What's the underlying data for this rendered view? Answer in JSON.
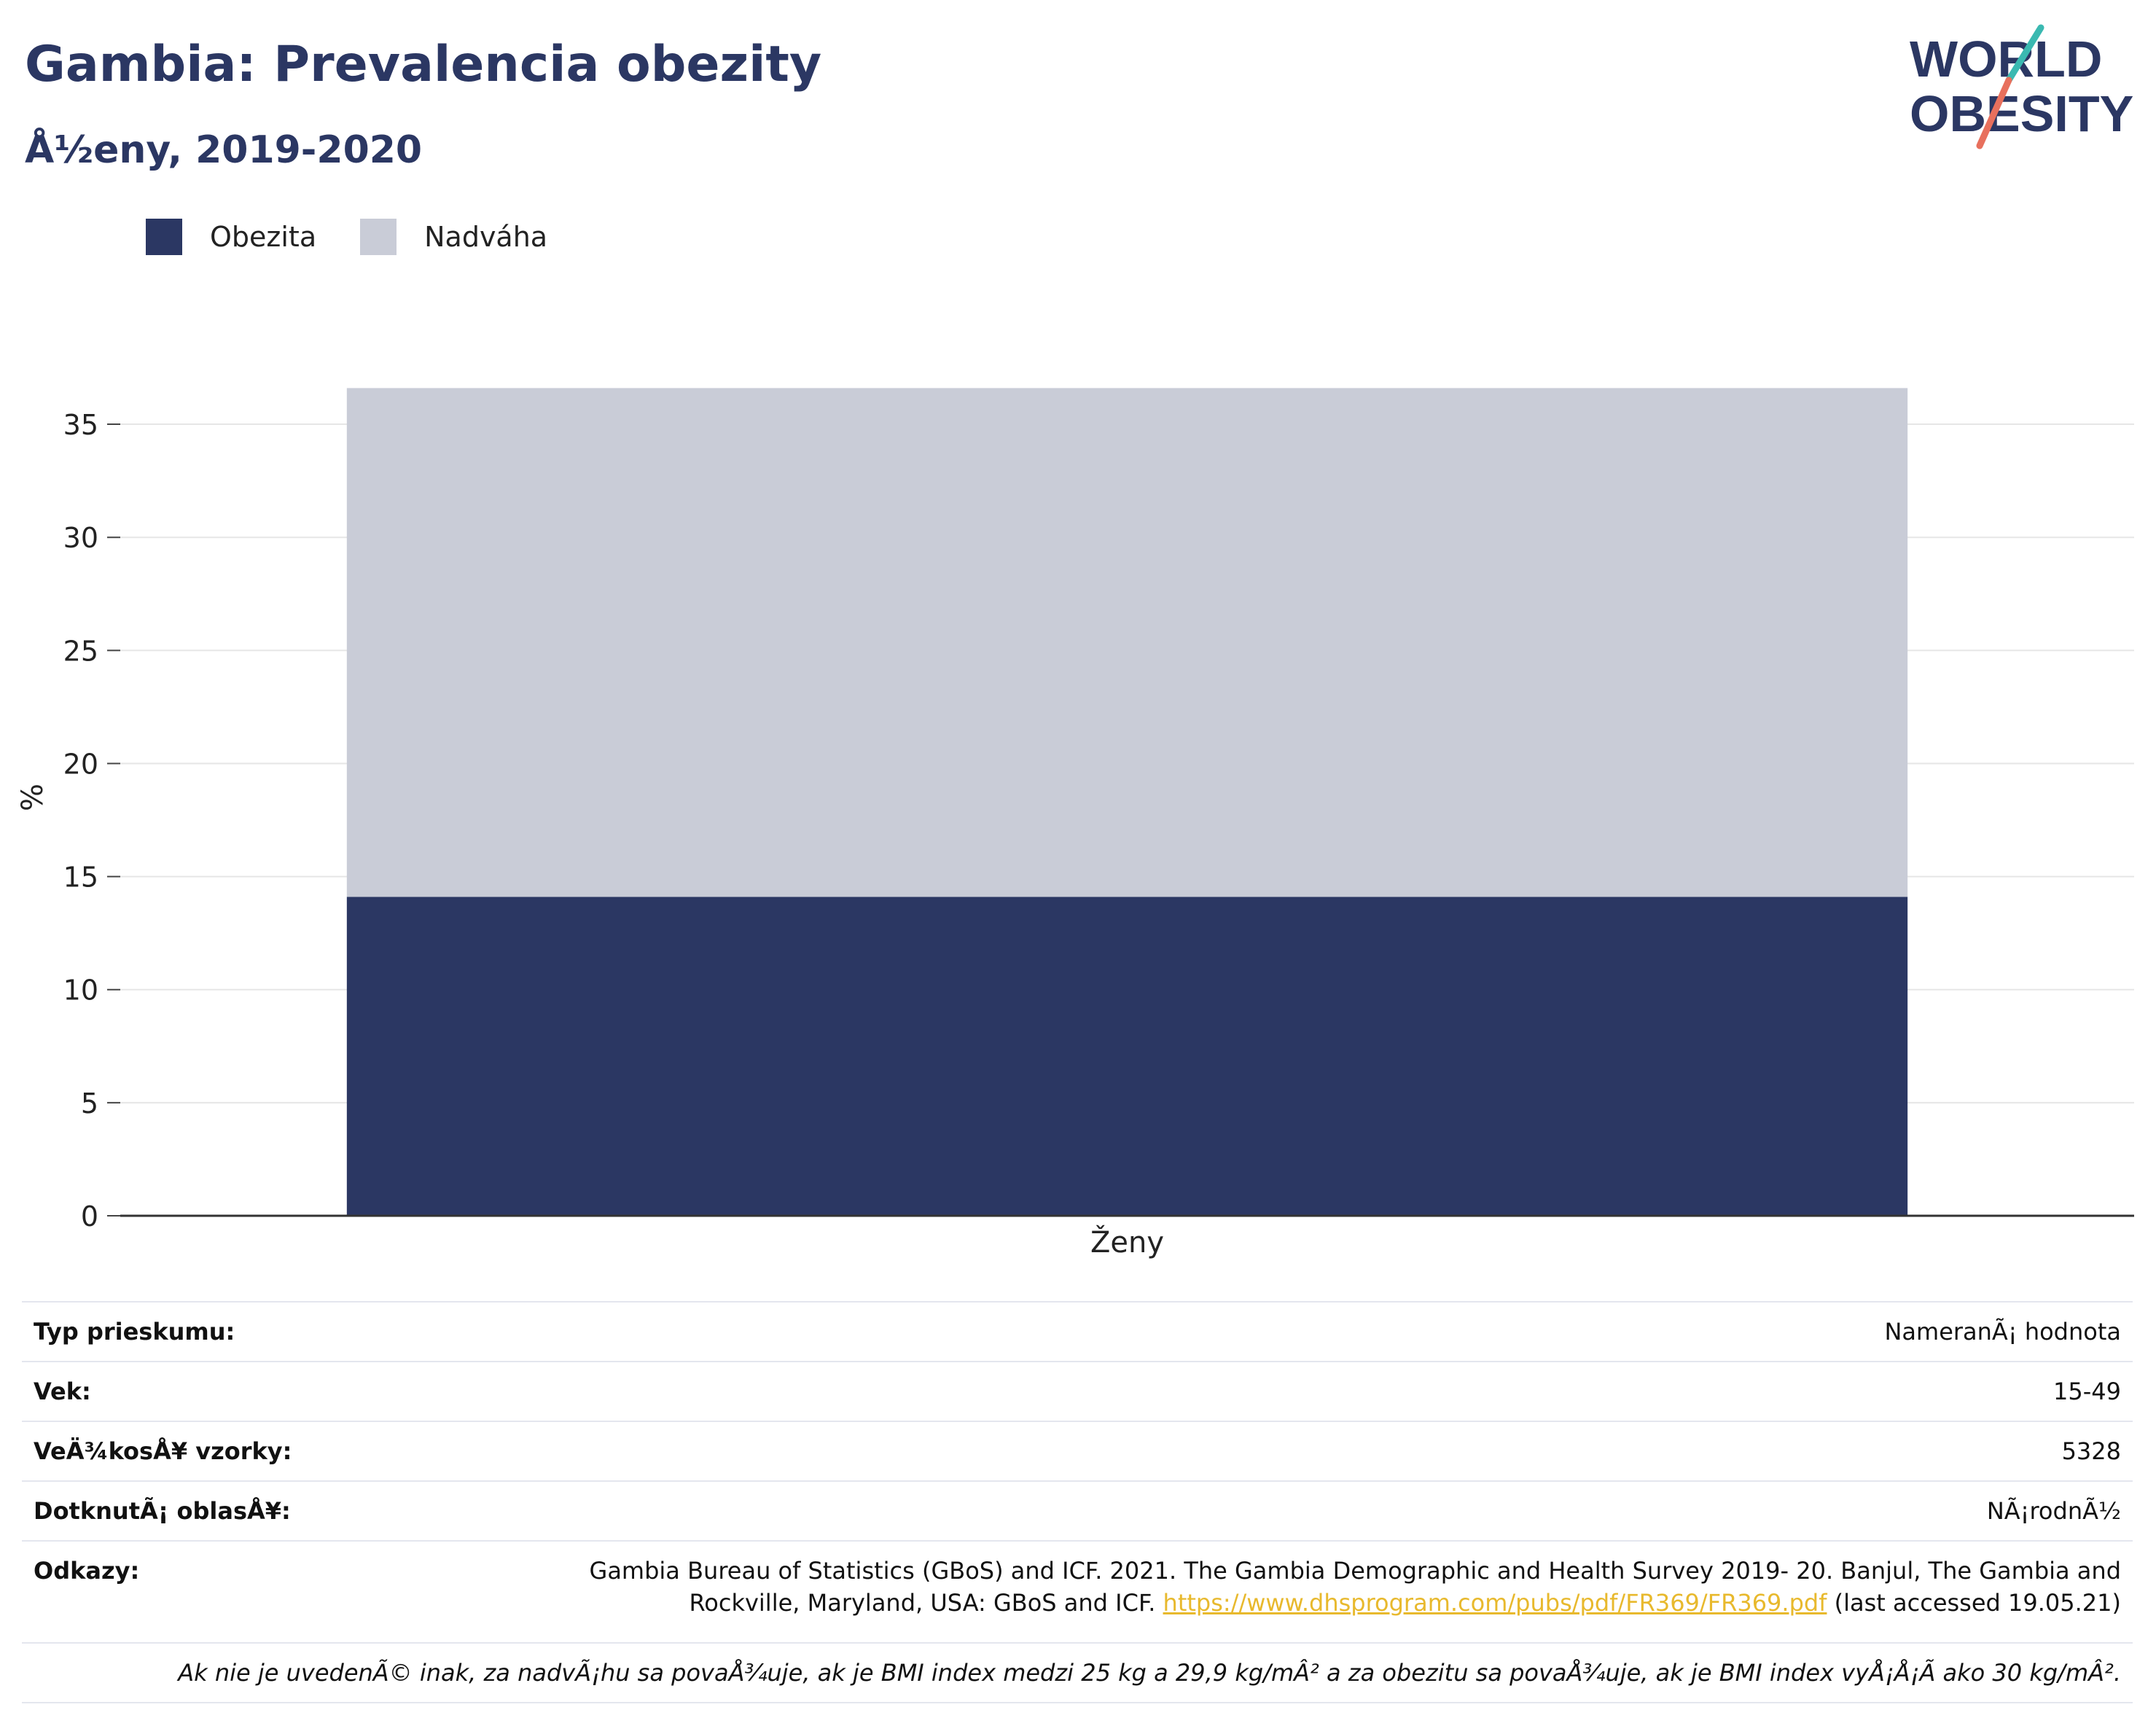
{
  "header": {
    "title": "Gambia: Prevalencia obezity",
    "subtitle": "Å½eny, 2019-2020"
  },
  "logo": {
    "line1": "WORLD",
    "line2": "OBESITY",
    "accent_teal": "#3ab9b1",
    "accent_coral": "#e8705d",
    "brand": "#2b3763"
  },
  "legend": [
    {
      "label": "Obezita",
      "color": "#2b3763"
    },
    {
      "label": "Nadváha",
      "color": "#c9ccd7"
    }
  ],
  "chart_data": {
    "type": "bar",
    "stacked": true,
    "categories": [
      "Ženy"
    ],
    "series": [
      {
        "name": "Obezita",
        "values": [
          14.1
        ],
        "color": "#2b3763"
      },
      {
        "name": "Nadváha",
        "values": [
          22.5
        ],
        "color": "#c9ccd7"
      }
    ],
    "ylabel": "%",
    "xlabel": "",
    "ylim": [
      0,
      37
    ],
    "yticks": [
      0,
      5,
      10,
      15,
      20,
      25,
      30,
      35
    ],
    "grid": true,
    "legend_position": "top-left"
  },
  "info": {
    "survey_type_label": "Typ prieskumu:",
    "survey_type_value": "NameranÃ¡ hodnota",
    "age_label": "Vek:",
    "age_value": "15-49",
    "sample_label": "VeÄ¾kosÅ¥ vzorky:",
    "sample_value": "5328",
    "area_label": "DotknutÃ¡ oblasÅ¥:",
    "area_value": "NÃ¡rodnÃ½",
    "refs_label": "Odkazy:",
    "refs_line1": "Gambia Bureau of Statistics (GBoS) and ICF. 2021. The Gambia Demographic and Health Survey 2019- 20. Banjul, The Gambia and",
    "refs_line2_pre": "Rockville, Maryland, USA: GBoS and ICF.",
    "refs_link": "https://www.dhsprogram.com/pubs/pdf/FR369/FR369.pdf",
    "refs_line2_post": "(last accessed 19.05.21)",
    "note": "Ak nie je uvedenÃ© inak, za nadvÃ¡hu sa povaÅ¾uje, ak je BMI index medzi 25 kg a 29,9 kg/mÂ² a za obezitu sa povaÅ¾uje, ak je BMI index vyÅ¡Å¡Ã ako 30 kg/mÂ²."
  }
}
